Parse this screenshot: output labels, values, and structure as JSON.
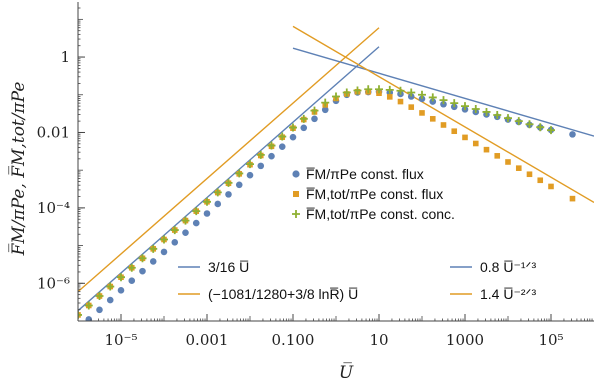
{
  "colors": {
    "blue": "#5E81B5",
    "orange": "#E19C24",
    "green": "#8FB032",
    "axis": "#444444"
  },
  "chart_data": {
    "type": "scatter",
    "xlabel": "U̅",
    "ylabel": "F̅M/πPe, F̅M,tot/πPe",
    "xscale": "log",
    "yscale": "log",
    "xlim": [
      1e-06,
      1000000.0
    ],
    "ylim": [
      1e-07,
      20
    ],
    "x_ticks": [
      {
        "value": 1e-05,
        "label": "10⁻⁵"
      },
      {
        "value": 0.001,
        "label": "0.001"
      },
      {
        "value": 0.1,
        "label": "0.100"
      },
      {
        "value": 10,
        "label": "10"
      },
      {
        "value": 1000,
        "label": "1000"
      },
      {
        "value": 100000,
        "label": "10⁵"
      }
    ],
    "y_ticks": [
      {
        "value": 1,
        "label": "1"
      },
      {
        "value": 0.01,
        "label": "0.01"
      },
      {
        "value": 0.0001,
        "label": "10⁻⁴"
      },
      {
        "value": 1e-06,
        "label": "10⁻⁶"
      }
    ],
    "series": [
      {
        "name": "F̅M/πPe const. flux",
        "marker": "circle",
        "color": "#5E81B5",
        "x": [
          1e-06,
          1.78e-06,
          3.16e-06,
          5.62e-06,
          1e-05,
          1.78e-05,
          3.16e-05,
          5.62e-05,
          0.0001,
          0.000178,
          0.000316,
          0.000562,
          0.001,
          0.00178,
          0.00316,
          0.00562,
          0.01,
          0.0178,
          0.0316,
          0.0562,
          0.1,
          0.178,
          0.316,
          0.562,
          1,
          1.78,
          3.16,
          5.62,
          10,
          17.8,
          31.6,
          56.2,
          100,
          178,
          316,
          562,
          1000,
          1780,
          3160,
          5620,
          10000,
          17800,
          31600,
          56200,
          100000,
          316000
        ],
        "y": [
          5.9e-08,
          1.1e-07,
          1.98e-07,
          3.6e-07,
          6.5e-07,
          1.17e-06,
          2.1e-06,
          3.8e-06,
          6.8e-06,
          1.22e-05,
          2.2e-05,
          3.95e-05,
          7.1e-05,
          0.000127,
          0.000228,
          0.00041,
          0.000735,
          0.0013,
          0.00235,
          0.0042,
          0.0075,
          0.0133,
          0.023,
          0.04,
          0.069,
          0.1,
          0.115,
          0.118,
          0.12,
          0.115,
          0.105,
          0.09,
          0.078,
          0.066,
          0.056,
          0.048,
          0.041,
          0.035,
          0.03,
          0.026,
          0.022,
          0.019,
          0.016,
          0.0136,
          0.0117,
          0.0089
        ]
      },
      {
        "name": "F̅M,tot/πPe const. flux",
        "marker": "square",
        "color": "#E19C24",
        "x": [
          1e-06,
          1.78e-06,
          3.16e-06,
          5.62e-06,
          1e-05,
          1.78e-05,
          3.16e-05,
          5.62e-05,
          0.0001,
          0.000178,
          0.000316,
          0.000562,
          0.001,
          0.00178,
          0.00316,
          0.00562,
          0.01,
          0.0178,
          0.0316,
          0.0562,
          0.1,
          0.178,
          0.316,
          0.562,
          1,
          1.78,
          3.16,
          5.62,
          10,
          17.8,
          31.6,
          56.2,
          100,
          178,
          316,
          562,
          1000,
          1780,
          3160,
          5620,
          10000,
          17800,
          31600,
          56200,
          100000,
          316000
        ],
        "y": [
          1.45e-07,
          2.58e-07,
          4.6e-07,
          8.2e-07,
          1.45e-06,
          2.58e-06,
          4.6e-06,
          8.2e-06,
          1.45e-05,
          2.58e-05,
          4.6e-05,
          8.2e-05,
          0.000145,
          0.000255,
          0.00045,
          0.0008,
          0.0014,
          0.00245,
          0.0043,
          0.0075,
          0.013,
          0.022,
          0.035,
          0.054,
          0.08,
          0.105,
          0.12,
          0.12,
          0.11,
          0.088,
          0.066,
          0.047,
          0.033,
          0.023,
          0.0158,
          0.0108,
          0.0074,
          0.0051,
          0.0035,
          0.0024,
          0.00165,
          0.00113,
          0.00078,
          0.00054,
          0.00037,
          0.000176
        ]
      },
      {
        "name": "F̅M,tot/πPe const. conc.",
        "marker": "plus",
        "color": "#8FB032",
        "x": [
          1e-06,
          1.78e-06,
          3.16e-06,
          5.62e-06,
          1e-05,
          1.78e-05,
          3.16e-05,
          5.62e-05,
          0.0001,
          0.000178,
          0.000316,
          0.000562,
          0.001,
          0.00178,
          0.00316,
          0.00562,
          0.01,
          0.0178,
          0.0316,
          0.0562,
          0.1,
          0.178,
          0.316,
          0.562,
          1,
          1.78,
          3.16,
          5.62,
          10,
          17.8,
          31.6,
          56.2,
          100,
          178,
          316,
          562,
          1000,
          1780,
          3160,
          5620,
          10000,
          17800,
          31600,
          56200,
          100000
        ],
        "y": [
          1.45e-07,
          2.58e-07,
          4.6e-07,
          8.2e-07,
          1.45e-06,
          2.58e-06,
          4.6e-06,
          8.2e-06,
          1.45e-05,
          2.58e-05,
          4.6e-05,
          8.2e-05,
          0.000145,
          0.000258,
          0.00046,
          0.00082,
          0.00145,
          0.00255,
          0.0045,
          0.0078,
          0.0135,
          0.023,
          0.038,
          0.062,
          0.09,
          0.115,
          0.13,
          0.14,
          0.14,
          0.135,
          0.128,
          0.115,
          0.1,
          0.085,
          0.072,
          0.06,
          0.05,
          0.042,
          0.035,
          0.029,
          0.024,
          0.02,
          0.0165,
          0.0138,
          0.0115
        ]
      }
    ],
    "asymptotes": [
      {
        "name": "3/16 U̅",
        "color": "#5E81B5",
        "kind": "power",
        "coef": 0.1875,
        "exp": 1,
        "xrange": [
          1e-06,
          10
        ]
      },
      {
        "name": "(−1081/1280+3/8 lnR̅) U̅",
        "color": "#E19C24",
        "kind": "power",
        "coef": 0.6,
        "exp": 1,
        "xrange": [
          1e-06,
          10
        ]
      },
      {
        "name": "0.8 U̅⁻¹ᐟ³",
        "color": "#5E81B5",
        "kind": "power",
        "coef": 0.8,
        "exp": -0.3333,
        "xrange": [
          0.1,
          1000000.0
        ]
      },
      {
        "name": "1.4 U̅⁻²ᐟ³",
        "color": "#E19C24",
        "kind": "power",
        "coef": 1.4,
        "exp": -0.6667,
        "xrange": [
          0.1,
          1000000.0
        ]
      }
    ],
    "legend": {
      "markers_placement": "center",
      "lines_placement": "bottom",
      "markers": [
        {
          "label": "F̅M/πPe const. flux",
          "marker": "circle",
          "color": "#5E81B5"
        },
        {
          "label": "F̅M,tot/πPe const. flux",
          "marker": "square",
          "color": "#E19C24"
        },
        {
          "label": "F̅M,tot/πPe const. conc.",
          "marker": "plus",
          "color": "#8FB032"
        }
      ],
      "lines": [
        {
          "label": "3/16 U̅",
          "color": "#5E81B5"
        },
        {
          "label": "0.8 U̅⁻¹ᐟ³",
          "color": "#5E81B5"
        },
        {
          "label": "(−1081/1280+3/8 lnR̅) U̅",
          "color": "#E19C24"
        },
        {
          "label": "1.4 U̅⁻²ᐟ³",
          "color": "#E19C24"
        }
      ]
    },
    "grid": false
  }
}
